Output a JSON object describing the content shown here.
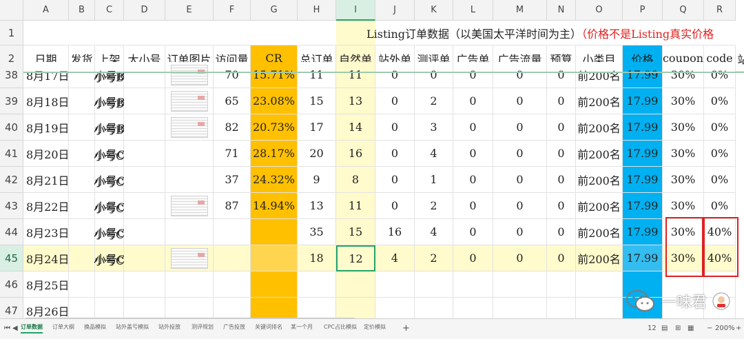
{
  "columns": [
    "A",
    "B",
    "C",
    "D",
    "E",
    "F",
    "G",
    "H",
    "I",
    "J",
    "K",
    "L",
    "M",
    "N",
    "O",
    "P",
    "Q",
    "R"
  ],
  "selected_column": "I",
  "title": {
    "main": "Listing订单数据（以美国太平洋时间为主）",
    "note": "（价格不是Listing真实价格"
  },
  "headers": [
    "日期",
    "发货",
    "上架",
    "大小号",
    "订单图片",
    "访问量",
    "CR",
    "总订单",
    "自然单",
    "站外单",
    "测评单",
    "广告单",
    "广告流量",
    "预算",
    "小类目",
    "价格",
    "coupon",
    "code",
    "站"
  ],
  "rows": [
    {
      "num": "38",
      "date": "8月17日",
      "account": "小号BC",
      "visits": "70",
      "cr": "15.71%",
      "total": "11",
      "natural": "11",
      "offsite": "0",
      "review": "0",
      "ads": "0",
      "traffic": "0",
      "budget": "0",
      "rank": "前200名",
      "price": "17.99",
      "coupon": "30%",
      "code": "0%",
      "img": true
    },
    {
      "num": "39",
      "date": "8月18日",
      "account": "小号BC",
      "visits": "65",
      "cr": "23.08%",
      "total": "15",
      "natural": "13",
      "offsite": "0",
      "review": "2",
      "ads": "0",
      "traffic": "0",
      "budget": "0",
      "rank": "前200名",
      "price": "17.99",
      "coupon": "30%",
      "code": "0%",
      "img": true
    },
    {
      "num": "40",
      "date": "8月19日",
      "account": "小号BC",
      "visits": "82",
      "cr": "20.73%",
      "total": "17",
      "natural": "14",
      "offsite": "0",
      "review": "3",
      "ads": "0",
      "traffic": "0",
      "budget": "0",
      "rank": "前200名",
      "price": "17.99",
      "coupon": "30%",
      "code": "0%",
      "img": true
    },
    {
      "num": "41",
      "date": "8月20日",
      "account": "小号C",
      "visits": "71",
      "cr": "28.17%",
      "total": "20",
      "natural": "16",
      "offsite": "0",
      "review": "4",
      "ads": "0",
      "traffic": "0",
      "budget": "0",
      "rank": "前200名",
      "price": "17.99",
      "coupon": "30%",
      "code": "0%",
      "img": false
    },
    {
      "num": "42",
      "date": "8月21日",
      "account": "小号C",
      "visits": "37",
      "cr": "24.32%",
      "total": "9",
      "natural": "8",
      "offsite": "0",
      "review": "1",
      "ads": "0",
      "traffic": "0",
      "budget": "0",
      "rank": "前200名",
      "price": "17.99",
      "coupon": "30%",
      "code": "0%",
      "img": false
    },
    {
      "num": "43",
      "date": "8月22日",
      "account": "小号C",
      "visits": "87",
      "cr": "14.94%",
      "total": "13",
      "natural": "11",
      "offsite": "0",
      "review": "2",
      "ads": "0",
      "traffic": "0",
      "budget": "0",
      "rank": "前200名",
      "price": "17.99",
      "coupon": "30%",
      "code": "0%",
      "img": true
    },
    {
      "num": "44",
      "date": "8月23日",
      "account": "小号C",
      "visits": "",
      "cr": "",
      "total": "35",
      "natural": "15",
      "offsite": "16",
      "review": "4",
      "ads": "0",
      "traffic": "0",
      "budget": "0",
      "rank": "前200名",
      "price": "17.99",
      "coupon": "30%",
      "code": "40%",
      "img": false
    },
    {
      "num": "45",
      "date": "8月24日",
      "account": "小号C",
      "visits": "",
      "cr": "",
      "total": "18",
      "natural": "12",
      "offsite": "4",
      "review": "2",
      "ads": "0",
      "traffic": "0",
      "budget": "0",
      "rank": "前200名",
      "price": "17.99",
      "coupon": "30%",
      "code": "40%",
      "img": true
    },
    {
      "num": "46",
      "date": "8月25日",
      "account": "",
      "visits": "",
      "cr": "",
      "total": "",
      "natural": "",
      "offsite": "",
      "review": "",
      "ads": "",
      "traffic": "",
      "budget": "",
      "rank": "",
      "price": "",
      "coupon": "",
      "code": "",
      "img": false
    },
    {
      "num": "47",
      "date": "8月26日",
      "account": "",
      "visits": "",
      "cr": "",
      "total": "",
      "natural": "",
      "offsite": "",
      "review": "",
      "ads": "",
      "traffic": "",
      "budget": "",
      "rank": "",
      "price": "",
      "coupon": "",
      "code": "",
      "img": false
    }
  ],
  "active_row": "45",
  "tabs": [
    "订单数据",
    "订单大纲",
    "换品模拟",
    "站外盖亏模拟",
    "站外投放",
    "测评规划",
    "广告投放",
    "关键词排名",
    "某一个月",
    "CPC占比模拟",
    "定价模拟"
  ],
  "active_tab": "订单数据",
  "status": {
    "count": "12",
    "zoom": "200%"
  },
  "watermark": "一味君",
  "colors": {
    "cr_column": "#ffc000",
    "price_column": "#00b0f0",
    "selected_col": "#fffbcc",
    "active_row": "#fffbcc",
    "highlight": "#e02020",
    "accent": "#21a366"
  }
}
